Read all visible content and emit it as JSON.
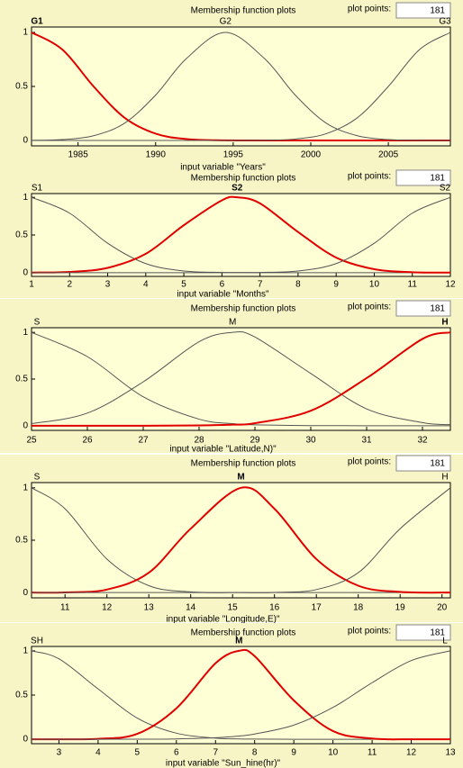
{
  "chart_data": [
    {
      "type": "line",
      "header": "Membership function plots",
      "plot_points_label": "plot points:",
      "plot_points": 181,
      "x_label": "input variable \"Years\"",
      "x": [
        1982,
        1984,
        1986,
        1988,
        1990,
        1992,
        1994.5,
        1997,
        1999,
        2001,
        2003,
        2005,
        2007,
        2009
      ],
      "series": [
        {
          "name": "G1",
          "color": "#e00000",
          "values": [
            1,
            0.84,
            0.5,
            0.21,
            0.063,
            0.013,
            0.001,
            0,
            0,
            0,
            0,
            0,
            0,
            0
          ]
        },
        {
          "name": "G2",
          "color": "#555555",
          "values": [
            0.001,
            0.008,
            0.044,
            0.16,
            0.42,
            0.76,
            1,
            0.76,
            0.42,
            0.16,
            0.044,
            0.008,
            0.001,
            0
          ]
        },
        {
          "name": "G3",
          "color": "#555555",
          "values": [
            0,
            0,
            0,
            0,
            0,
            0,
            0,
            0.002,
            0.013,
            0.063,
            0.21,
            0.5,
            0.84,
            1
          ]
        }
      ],
      "xlim": [
        1982,
        2009
      ],
      "xticks": [
        1985,
        1990,
        1995,
        2000,
        2005
      ],
      "ylim": [
        -0.05,
        1.05
      ],
      "yticks": [
        0,
        0.5,
        1
      ]
    },
    {
      "type": "line",
      "header": "Membership function plots",
      "plot_points_label": "plot points:",
      "plot_points": 181,
      "x_label": "input variable \"Months\"",
      "x": [
        1,
        2,
        3,
        4,
        5,
        6,
        6.4,
        7,
        8,
        9,
        10,
        11,
        12
      ],
      "series": [
        {
          "name": "S1",
          "color": "#555555",
          "values": [
            1,
            0.79,
            0.39,
            0.12,
            0.022,
            0.003,
            0.001,
            0,
            0,
            0,
            0,
            0,
            0
          ]
        },
        {
          "name": "S2",
          "color": "#e00000",
          "values": [
            0.001,
            0.01,
            0.064,
            0.25,
            0.63,
            0.96,
            1,
            0.92,
            0.54,
            0.2,
            0.046,
            0.006,
            0.001
          ]
        },
        {
          "name": "S2",
          "color": "#555555",
          "values": [
            0,
            0,
            0,
            0,
            0,
            0,
            0.001,
            0.003,
            0.022,
            0.12,
            0.39,
            0.79,
            1
          ]
        }
      ],
      "xlim": [
        1,
        12
      ],
      "xticks": [
        1,
        2,
        3,
        4,
        5,
        6,
        7,
        8,
        9,
        10,
        11,
        12
      ],
      "ylim": [
        -0.05,
        1.05
      ],
      "yticks": [
        0,
        0.5,
        1
      ]
    },
    {
      "type": "line",
      "header": "Membership function plots",
      "plot_points_label": "plot points:",
      "plot_points": 181,
      "x_label": "input variable \"Latitude,N)\"",
      "x": [
        25,
        26,
        27,
        28,
        28.6,
        29,
        30,
        31,
        32,
        32.5
      ],
      "series": [
        {
          "name": "S",
          "color": "#555555",
          "values": [
            1,
            0.74,
            0.31,
            0.07,
            0.022,
            0.009,
            0.001,
            0,
            0,
            0
          ]
        },
        {
          "name": "M",
          "color": "#555555",
          "values": [
            0.022,
            0.135,
            0.47,
            0.9,
            1,
            0.95,
            0.56,
            0.18,
            0.033,
            0.011
          ]
        },
        {
          "name": "H",
          "color": "#e00000",
          "values": [
            0,
            0,
            0,
            0.003,
            0.011,
            0.027,
            0.16,
            0.51,
            0.93,
            1
          ]
        }
      ],
      "xlim": [
        25,
        32.5
      ],
      "xticks": [
        25,
        26,
        27,
        28,
        29,
        30,
        31,
        32
      ],
      "ylim": [
        -0.05,
        1.05
      ],
      "yticks": [
        0,
        0.5,
        1
      ]
    },
    {
      "type": "line",
      "header": "Membership function plots",
      "plot_points_label": "plot points:",
      "plot_points": 181,
      "x_label": "input variable \"Longitude,E)\"",
      "x": [
        10.2,
        11,
        12,
        13,
        14,
        15.2,
        16,
        17,
        18,
        19,
        20.2
      ],
      "series": [
        {
          "name": "S",
          "color": "#555555",
          "values": [
            1,
            0.8,
            0.32,
            0.066,
            0.007,
            0,
            0,
            0,
            0,
            0,
            0
          ]
        },
        {
          "name": "M",
          "color": "#e00000",
          "values": [
            0,
            0.002,
            0.029,
            0.19,
            0.61,
            1,
            0.8,
            0.32,
            0.066,
            0.007,
            0
          ]
        },
        {
          "name": "H",
          "color": "#555555",
          "values": [
            0,
            0,
            0,
            0,
            0,
            0,
            0.002,
            0.029,
            0.19,
            0.61,
            1
          ]
        }
      ],
      "xlim": [
        10.2,
        20.2
      ],
      "xticks": [
        11,
        12,
        13,
        14,
        15,
        16,
        17,
        18,
        19,
        20
      ],
      "ylim": [
        -0.05,
        1.05
      ],
      "yticks": [
        0,
        0.5,
        1
      ]
    },
    {
      "type": "line",
      "header": "Membership function plots",
      "plot_points_label": "plot points:",
      "plot_points": 181,
      "x_label": "input variable \"Sun_hine(hr)\"",
      "x": [
        2.3,
        3,
        4,
        5,
        6,
        7,
        7.6,
        8,
        9,
        10,
        11,
        12,
        13
      ],
      "series": [
        {
          "name": "SH",
          "color": "#555555",
          "values": [
            1,
            0.91,
            0.57,
            0.24,
            0.069,
            0.013,
            0.004,
            0.002,
            0,
            0,
            0,
            0,
            0
          ]
        },
        {
          "name": "M",
          "color": "#e00000",
          "values": [
            0,
            0,
            0.005,
            0.061,
            0.35,
            0.86,
            1,
            0.94,
            0.44,
            0.093,
            0.008,
            0,
            0
          ]
        },
        {
          "name": "L",
          "color": "#555555",
          "values": [
            0,
            0,
            0,
            0.001,
            0.004,
            0.017,
            0.037,
            0.059,
            0.16,
            0.36,
            0.64,
            0.89,
            1
          ]
        }
      ],
      "xlim": [
        2.3,
        13
      ],
      "xticks": [
        3,
        4,
        5,
        6,
        7,
        8,
        9,
        10,
        11,
        12,
        13
      ],
      "ylim": [
        -0.05,
        1.05
      ],
      "yticks": [
        0,
        0.5,
        1
      ]
    }
  ]
}
